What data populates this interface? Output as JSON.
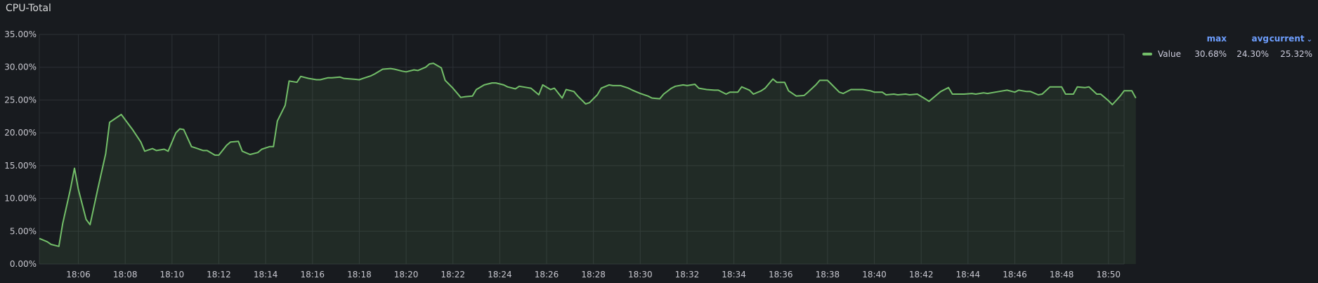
{
  "panel": {
    "title": "CPU-Total"
  },
  "legend": {
    "headers": {
      "max": "max",
      "avg": "avg",
      "current": "current"
    },
    "sort_icon": "chevron-down-icon",
    "series": [
      {
        "name": "Value",
        "max": "30.68%",
        "avg": "24.30%",
        "current": "25.32%",
        "color": "#73bf69"
      }
    ]
  },
  "chart_data": {
    "type": "area",
    "title": "",
    "xlabel": "",
    "ylabel": "",
    "ylim": [
      0,
      35
    ],
    "grid": true,
    "y_ticks": [
      "0.00%",
      "5.00%",
      "10.00%",
      "15.00%",
      "20.00%",
      "25.00%",
      "30.00%",
      "35.00%"
    ],
    "x_ticks": [
      "18:06",
      "18:08",
      "18:10",
      "18:12",
      "18:14",
      "18:16",
      "18:18",
      "18:20",
      "18:22",
      "18:24",
      "18:26",
      "18:28",
      "18:30",
      "18:32",
      "18:34",
      "18:36",
      "18:38",
      "18:40",
      "18:42",
      "18:44",
      "18:46",
      "18:48",
      "18:50"
    ],
    "x_range": [
      "18:04:20",
      "18:50:40"
    ],
    "series": [
      {
        "name": "Value",
        "color": "#73bf69",
        "points": [
          [
            "18:04:20",
            3.9
          ],
          [
            "18:04:40",
            3.4
          ],
          [
            "18:04:50",
            3.0
          ],
          [
            "18:05:10",
            2.7
          ],
          [
            "18:05:20",
            6.2
          ],
          [
            "18:05:40",
            11.5
          ],
          [
            "18:05:50",
            14.6
          ],
          [
            "18:06:00",
            11.4
          ],
          [
            "18:06:20",
            6.8
          ],
          [
            "18:06:30",
            6.0
          ],
          [
            "18:06:50",
            11.5
          ],
          [
            "18:07:10",
            16.8
          ],
          [
            "18:07:20",
            21.6
          ],
          [
            "18:07:30",
            22.0
          ],
          [
            "18:07:50",
            22.8
          ],
          [
            "18:08:00",
            22.0
          ],
          [
            "18:08:20",
            20.4
          ],
          [
            "18:08:40",
            18.6
          ],
          [
            "18:08:50",
            17.2
          ],
          [
            "18:09:10",
            17.6
          ],
          [
            "18:09:20",
            17.3
          ],
          [
            "18:09:40",
            17.5
          ],
          [
            "18:09:50",
            17.2
          ],
          [
            "18:10:10",
            20.0
          ],
          [
            "18:10:20",
            20.6
          ],
          [
            "18:10:30",
            20.5
          ],
          [
            "18:10:50",
            17.9
          ],
          [
            "18:11:00",
            17.7
          ],
          [
            "18:11:20",
            17.3
          ],
          [
            "18:11:30",
            17.3
          ],
          [
            "18:11:50",
            16.6
          ],
          [
            "18:12:00",
            16.6
          ],
          [
            "18:12:20",
            18.1
          ],
          [
            "18:12:30",
            18.6
          ],
          [
            "18:12:50",
            18.7
          ],
          [
            "18:13:00",
            17.2
          ],
          [
            "18:13:20",
            16.7
          ],
          [
            "18:13:40",
            17.0
          ],
          [
            "18:13:50",
            17.5
          ],
          [
            "18:14:10",
            17.9
          ],
          [
            "18:14:20",
            17.9
          ],
          [
            "18:14:30",
            21.8
          ],
          [
            "18:14:50",
            24.2
          ],
          [
            "18:15:00",
            27.9
          ],
          [
            "18:15:20",
            27.7
          ],
          [
            "18:15:30",
            28.6
          ],
          [
            "18:15:50",
            28.3
          ],
          [
            "18:16:10",
            28.1
          ],
          [
            "18:16:20",
            28.1
          ],
          [
            "18:16:40",
            28.4
          ],
          [
            "18:16:50",
            28.4
          ],
          [
            "18:17:10",
            28.5
          ],
          [
            "18:17:20",
            28.3
          ],
          [
            "18:17:40",
            28.2
          ],
          [
            "18:18:00",
            28.1
          ],
          [
            "18:18:10",
            28.3
          ],
          [
            "18:18:30",
            28.7
          ],
          [
            "18:18:40",
            29.0
          ],
          [
            "18:19:00",
            29.7
          ],
          [
            "18:19:20",
            29.8
          ],
          [
            "18:19:30",
            29.7
          ],
          [
            "18:19:50",
            29.4
          ],
          [
            "18:20:00",
            29.3
          ],
          [
            "18:20:20",
            29.6
          ],
          [
            "18:20:30",
            29.5
          ],
          [
            "18:20:50",
            30.0
          ],
          [
            "18:21:00",
            30.5
          ],
          [
            "18:21:10",
            30.6
          ],
          [
            "18:21:30",
            29.9
          ],
          [
            "18:21:40",
            28.0
          ],
          [
            "18:22:00",
            26.8
          ],
          [
            "18:22:20",
            25.4
          ],
          [
            "18:22:30",
            25.5
          ],
          [
            "18:22:50",
            25.6
          ],
          [
            "18:23:00",
            26.6
          ],
          [
            "18:23:20",
            27.3
          ],
          [
            "18:23:40",
            27.6
          ],
          [
            "18:23:50",
            27.6
          ],
          [
            "18:24:10",
            27.3
          ],
          [
            "18:24:20",
            27.0
          ],
          [
            "18:24:40",
            26.7
          ],
          [
            "18:24:50",
            27.1
          ],
          [
            "18:25:10",
            26.9
          ],
          [
            "18:25:20",
            26.8
          ],
          [
            "18:25:40",
            25.8
          ],
          [
            "18:25:50",
            27.3
          ],
          [
            "18:26:10",
            26.6
          ],
          [
            "18:26:20",
            26.8
          ],
          [
            "18:26:40",
            25.3
          ],
          [
            "18:26:50",
            26.6
          ],
          [
            "18:27:10",
            26.3
          ],
          [
            "18:27:20",
            25.6
          ],
          [
            "18:27:40",
            24.4
          ],
          [
            "18:27:50",
            24.6
          ],
          [
            "18:28:10",
            25.8
          ],
          [
            "18:28:20",
            26.8
          ],
          [
            "18:28:40",
            27.3
          ],
          [
            "18:28:50",
            27.2
          ],
          [
            "18:29:10",
            27.2
          ],
          [
            "18:29:30",
            26.8
          ],
          [
            "18:29:40",
            26.5
          ],
          [
            "18:30:00",
            26.0
          ],
          [
            "18:30:20",
            25.6
          ],
          [
            "18:30:30",
            25.3
          ],
          [
            "18:30:50",
            25.2
          ],
          [
            "18:31:00",
            25.9
          ],
          [
            "18:31:20",
            26.8
          ],
          [
            "18:31:30",
            27.1
          ],
          [
            "18:31:50",
            27.3
          ],
          [
            "18:32:00",
            27.2
          ],
          [
            "18:32:20",
            27.4
          ],
          [
            "18:32:30",
            26.8
          ],
          [
            "18:32:50",
            26.6
          ],
          [
            "18:33:10",
            26.5
          ],
          [
            "18:33:20",
            26.5
          ],
          [
            "18:33:40",
            25.9
          ],
          [
            "18:33:50",
            26.2
          ],
          [
            "18:34:10",
            26.2
          ],
          [
            "18:34:20",
            27.0
          ],
          [
            "18:34:40",
            26.5
          ],
          [
            "18:34:50",
            25.9
          ],
          [
            "18:35:10",
            26.4
          ],
          [
            "18:35:20",
            26.8
          ],
          [
            "18:35:40",
            28.2
          ],
          [
            "18:35:50",
            27.7
          ],
          [
            "18:36:10",
            27.7
          ],
          [
            "18:36:20",
            26.4
          ],
          [
            "18:36:40",
            25.6
          ],
          [
            "18:37:00",
            25.7
          ],
          [
            "18:37:10",
            26.2
          ],
          [
            "18:37:30",
            27.3
          ],
          [
            "18:37:40",
            28.0
          ],
          [
            "18:38:00",
            28.0
          ],
          [
            "18:38:10",
            27.4
          ],
          [
            "18:38:30",
            26.2
          ],
          [
            "18:38:40",
            26.0
          ],
          [
            "18:39:00",
            26.6
          ],
          [
            "18:39:20",
            26.6
          ],
          [
            "18:39:30",
            26.6
          ],
          [
            "18:39:50",
            26.4
          ],
          [
            "18:40:00",
            26.2
          ],
          [
            "18:40:20",
            26.2
          ],
          [
            "18:40:30",
            25.8
          ],
          [
            "18:40:50",
            25.9
          ],
          [
            "18:41:00",
            25.8
          ],
          [
            "18:41:20",
            25.9
          ],
          [
            "18:41:30",
            25.8
          ],
          [
            "18:41:50",
            25.9
          ],
          [
            "18:42:10",
            25.2
          ],
          [
            "18:42:20",
            24.8
          ],
          [
            "18:42:40",
            25.8
          ],
          [
            "18:42:50",
            26.3
          ],
          [
            "18:43:10",
            26.9
          ],
          [
            "18:43:20",
            25.9
          ],
          [
            "18:43:40",
            25.9
          ],
          [
            "18:43:50",
            25.9
          ],
          [
            "18:44:10",
            26.0
          ],
          [
            "18:44:20",
            25.9
          ],
          [
            "18:44:40",
            26.1
          ],
          [
            "18:44:50",
            26.0
          ],
          [
            "18:45:10",
            26.2
          ],
          [
            "18:45:30",
            26.4
          ],
          [
            "18:45:40",
            26.5
          ],
          [
            "18:46:00",
            26.2
          ],
          [
            "18:46:10",
            26.5
          ],
          [
            "18:46:30",
            26.3
          ],
          [
            "18:46:40",
            26.3
          ],
          [
            "18:47:00",
            25.8
          ],
          [
            "18:47:10",
            25.9
          ],
          [
            "18:47:30",
            27.0
          ],
          [
            "18:47:40",
            27.0
          ],
          [
            "18:48:00",
            27.0
          ],
          [
            "18:48:10",
            25.9
          ],
          [
            "18:48:30",
            25.9
          ],
          [
            "18:48:40",
            27.0
          ],
          [
            "18:49:00",
            26.9
          ],
          [
            "18:49:10",
            27.0
          ],
          [
            "18:49:30",
            25.9
          ],
          [
            "18:49:40",
            25.9
          ],
          [
            "18:50:00",
            24.9
          ],
          [
            "18:50:10",
            24.3
          ],
          [
            "18:50:30",
            25.6
          ],
          [
            "18:50:40",
            26.4
          ],
          [
            "18:51:00",
            26.4
          ],
          [
            "18:51:10",
            25.3
          ]
        ]
      }
    ]
  }
}
